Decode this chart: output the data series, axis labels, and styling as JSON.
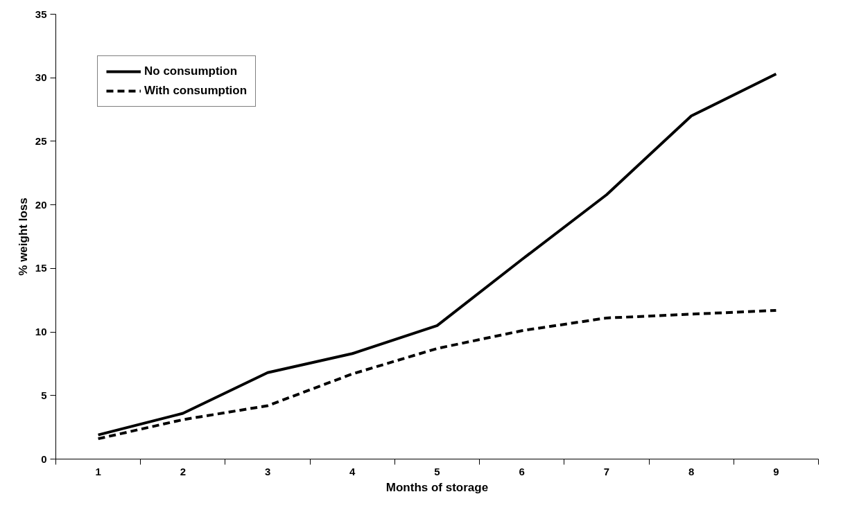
{
  "chart_data": {
    "type": "line",
    "xlabel": "Months of storage",
    "ylabel": "% weight loss",
    "categories": [
      "1",
      "2",
      "3",
      "4",
      "5",
      "6",
      "7",
      "8",
      "9"
    ],
    "series": [
      {
        "name": "No consumption",
        "color": "#000000",
        "line_style": "solid",
        "values": [
          1.9,
          3.6,
          6.8,
          8.3,
          10.5,
          15.7,
          20.8,
          27.0,
          30.3
        ]
      },
      {
        "name": "With consumption",
        "color": "#000000",
        "line_style": "dashed",
        "values": [
          1.6,
          3.1,
          4.2,
          6.7,
          8.7,
          10.1,
          11.1,
          11.4,
          11.7
        ]
      }
    ],
    "ylim": [
      0,
      35
    ],
    "yticks": [
      0,
      5,
      10,
      15,
      20,
      25,
      30,
      35
    ],
    "grid": false,
    "legend": "top left",
    "marker": "none"
  }
}
